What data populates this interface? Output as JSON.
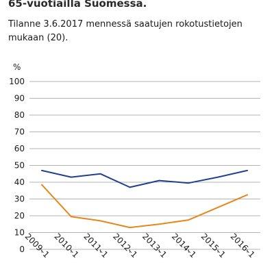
{
  "header": {
    "title": "65-vuotiailla Suomessa.",
    "subtitle": "Tilanne 3.6.2017 mennessä saatujen rokotustietojen mukaan (20)."
  },
  "chart_data": {
    "type": "line",
    "title": "65-vuotiailla Suomessa.",
    "subtitle": "Tilanne 3.6.2017 mennessä saatujen rokotustietojen mukaan (20).",
    "ylabel": "%",
    "xlabel": "",
    "ylim": [
      0,
      100
    ],
    "yticks": [
      0,
      10,
      20,
      30,
      40,
      50,
      60,
      70,
      80,
      90,
      100
    ],
    "grid": true,
    "categories": [
      "2009–1",
      "2010–1",
      "2011–1",
      "2012–1",
      "2013–1",
      "2014–1",
      "2015–1",
      "2016–1"
    ],
    "series": [
      {
        "values": [
          47,
          43,
          45,
          37,
          41,
          39.5,
          43,
          47
        ],
        "color": "#1f3f8f"
      },
      {
        "values": [
          38.5,
          19.5,
          17,
          13,
          15,
          17.5,
          25,
          32.5
        ],
        "color": "#e8861a"
      }
    ]
  }
}
